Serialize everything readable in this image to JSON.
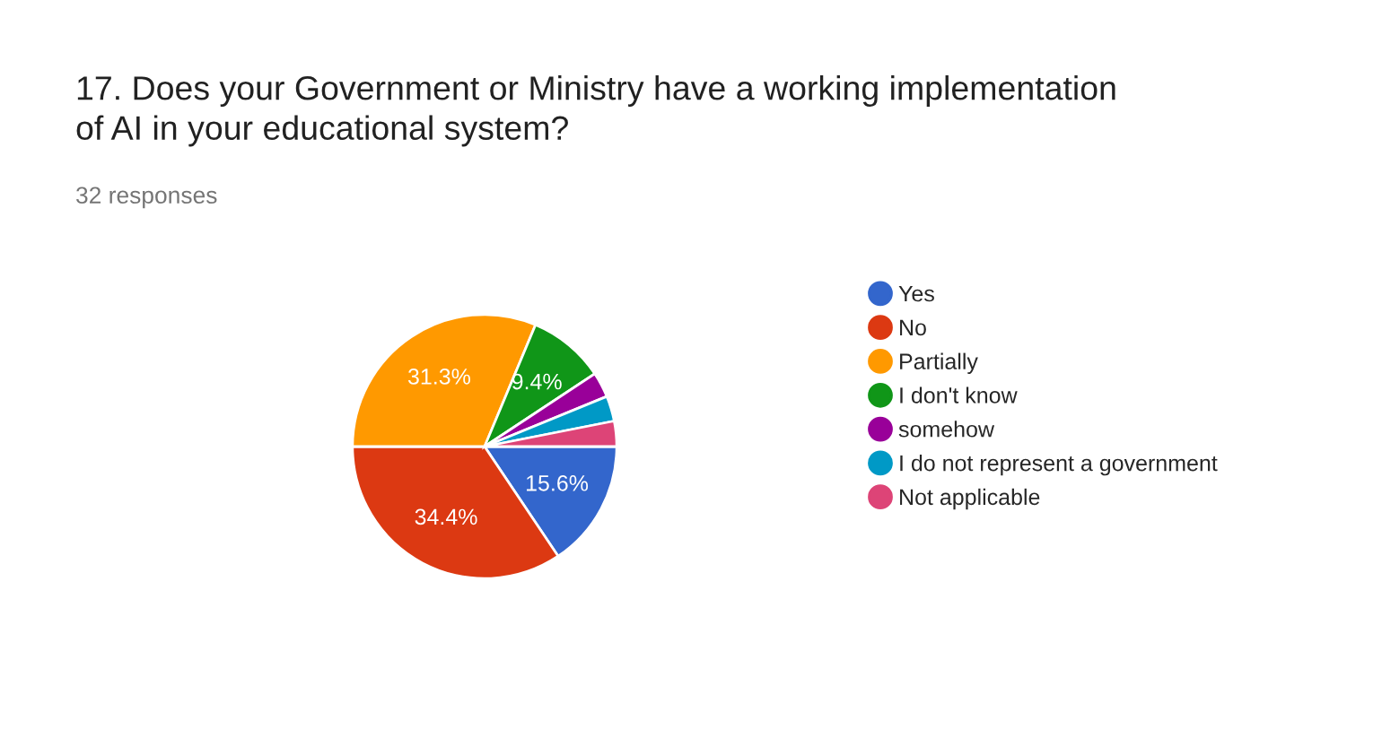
{
  "chart_data": {
    "type": "pie",
    "title": "17. Does your Government or Ministry have a working implementation\nof AI in your educational system?",
    "subtitle": "32 responses",
    "categories": [
      "Yes",
      "No",
      "Partially",
      "I don't know",
      "somehow",
      "I do not represent a government",
      "Not applicable"
    ],
    "values": [
      15.6,
      34.4,
      31.3,
      9.4,
      3.1,
      3.1,
      3.1
    ],
    "colors": [
      "#3366cc",
      "#dc3912",
      "#ff9900",
      "#109618",
      "#990099",
      "#0099c6",
      "#dd4477"
    ],
    "value_labels": [
      "15.6%",
      "34.4%",
      "31.3%",
      "9.4%",
      null,
      null,
      null
    ],
    "legend": "right"
  }
}
